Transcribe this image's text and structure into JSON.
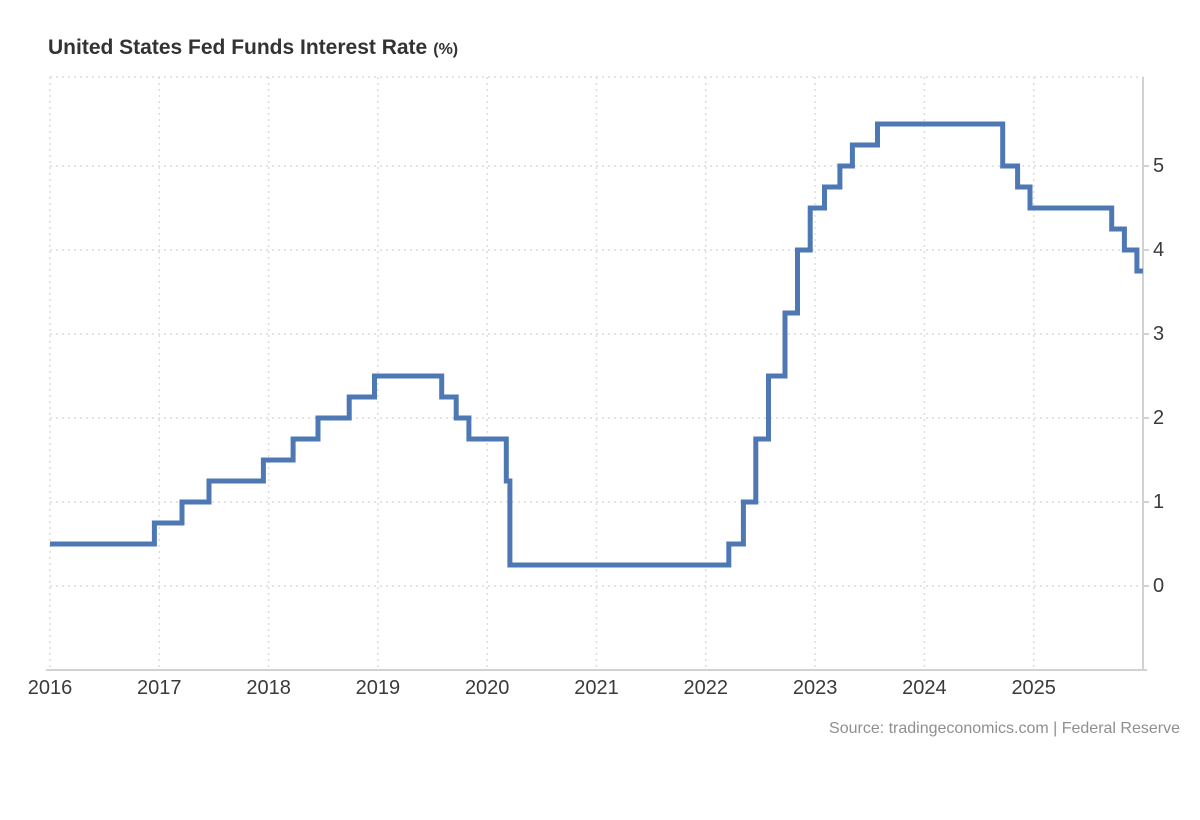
{
  "header": {
    "title": "United States Fed Funds Interest Rate",
    "title_unit": "(%)"
  },
  "footer": {
    "source": "Source: tradingeconomics.com | Federal Reserve"
  },
  "colors": {
    "line": "#4d78b4",
    "grid": "#dcdcdc",
    "axis": "#d2d2d2",
    "label_text": "#3a3a3a",
    "title_text": "#333333",
    "source_text": "#8f8f8f",
    "background": "#ffffff"
  },
  "chart_data": {
    "type": "line",
    "subtype": "step-after",
    "title": "United States Fed Funds Interest Rate (%)",
    "xlabel": "",
    "ylabel": "",
    "grid": true,
    "legend": false,
    "x_ticks": [
      2016,
      2017,
      2018,
      2019,
      2020,
      2021,
      2022,
      2023,
      2024,
      2025
    ],
    "y_ticks": [
      0,
      1,
      2,
      3,
      4,
      5
    ],
    "x_range": [
      "2016-01-01",
      "2025-12-31"
    ],
    "y_range": [
      -1,
      6.05
    ],
    "y_axis_side": "right",
    "series": [
      {
        "name": "Fed Funds Interest Rate (%)",
        "points": [
          {
            "date": "2016-01-01",
            "value": 0.5
          },
          {
            "date": "2016-12-15",
            "value": 0.75
          },
          {
            "date": "2017-03-16",
            "value": 1.0
          },
          {
            "date": "2017-06-15",
            "value": 1.25
          },
          {
            "date": "2017-12-14",
            "value": 1.5
          },
          {
            "date": "2018-03-22",
            "value": 1.75
          },
          {
            "date": "2018-06-14",
            "value": 2.0
          },
          {
            "date": "2018-09-27",
            "value": 2.25
          },
          {
            "date": "2018-12-20",
            "value": 2.5
          },
          {
            "date": "2019-08-01",
            "value": 2.25
          },
          {
            "date": "2019-09-19",
            "value": 2.0
          },
          {
            "date": "2019-10-31",
            "value": 1.75
          },
          {
            "date": "2020-03-04",
            "value": 1.25
          },
          {
            "date": "2020-03-16",
            "value": 0.25
          },
          {
            "date": "2022-03-17",
            "value": 0.5
          },
          {
            "date": "2022-05-05",
            "value": 1.0
          },
          {
            "date": "2022-06-16",
            "value": 1.75
          },
          {
            "date": "2022-07-28",
            "value": 2.5
          },
          {
            "date": "2022-09-22",
            "value": 3.25
          },
          {
            "date": "2022-11-03",
            "value": 4.0
          },
          {
            "date": "2022-12-15",
            "value": 4.5
          },
          {
            "date": "2023-02-02",
            "value": 4.75
          },
          {
            "date": "2023-03-23",
            "value": 5.0
          },
          {
            "date": "2023-05-04",
            "value": 5.25
          },
          {
            "date": "2023-07-27",
            "value": 5.5
          },
          {
            "date": "2024-09-19",
            "value": 5.0
          },
          {
            "date": "2024-11-08",
            "value": 4.75
          },
          {
            "date": "2024-12-19",
            "value": 4.5
          },
          {
            "date": "2025-09-18",
            "value": 4.25
          },
          {
            "date": "2025-10-30",
            "value": 4.0
          },
          {
            "date": "2025-12-11",
            "value": 3.75
          }
        ]
      }
    ]
  }
}
